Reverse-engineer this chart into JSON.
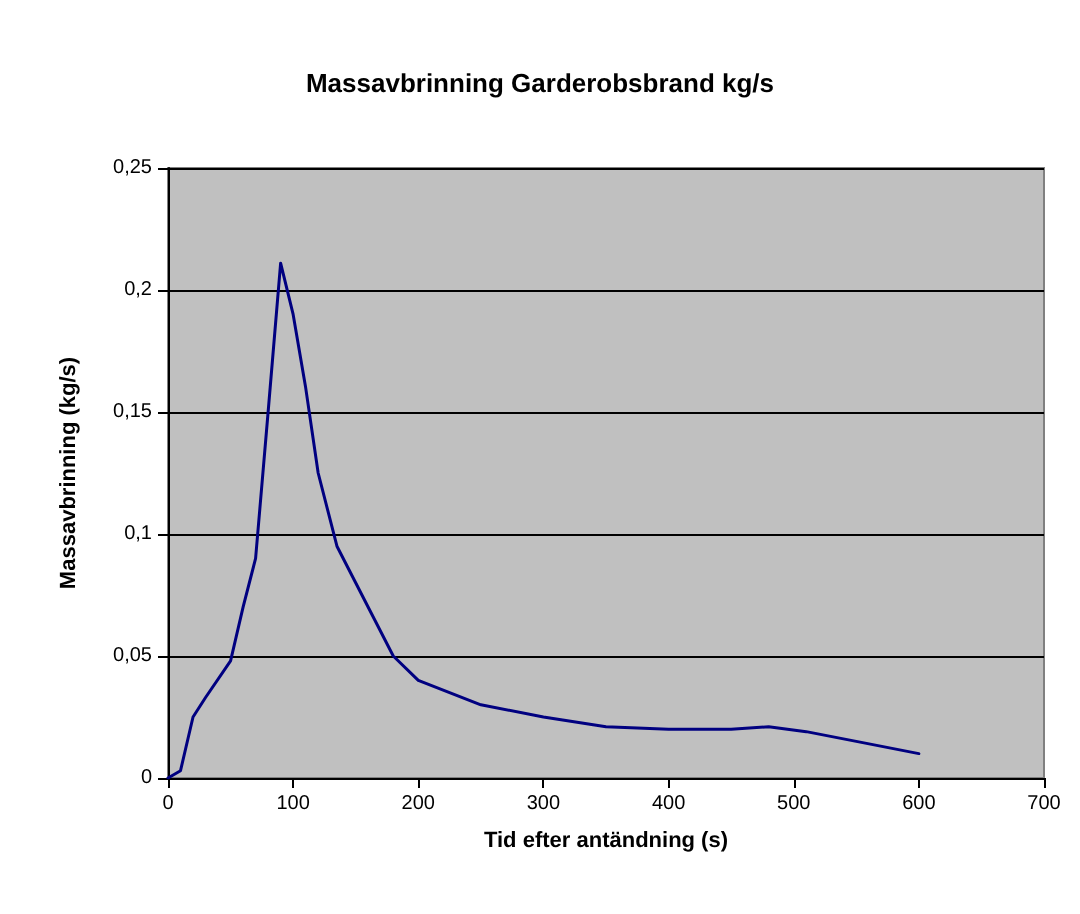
{
  "chart_data": {
    "type": "line",
    "title": "Massavbrinning Garderobsbrand kg/s",
    "xlabel": "Tid efter antändning (s)",
    "ylabel": "Massavbrinning (kg/s)",
    "series": [
      {
        "color": "#000080",
        "x": [
          0,
          10,
          20,
          30,
          50,
          60,
          70,
          80,
          90,
          100,
          110,
          120,
          135,
          160,
          180,
          200,
          250,
          300,
          350,
          400,
          450,
          480,
          510,
          550,
          600
        ],
        "values": [
          0,
          0.003,
          0.025,
          0.033,
          0.048,
          0.07,
          0.09,
          0.15,
          0.211,
          0.19,
          0.16,
          0.125,
          0.095,
          0.07,
          0.05,
          0.04,
          0.03,
          0.025,
          0.021,
          0.02,
          0.02,
          0.021,
          0.019,
          0.015,
          0.01
        ]
      }
    ],
    "xlim": [
      0,
      700
    ],
    "xticks": [
      0,
      100,
      200,
      300,
      400,
      500,
      600,
      700
    ],
    "ylim": [
      0,
      0.25
    ],
    "yticks": [
      {
        "value": 0,
        "label": "0"
      },
      {
        "value": 0.05,
        "label": "0,05"
      },
      {
        "value": 0.1,
        "label": "0,1"
      },
      {
        "value": 0.15,
        "label": "0,15"
      },
      {
        "value": 0.2,
        "label": "0,2"
      },
      {
        "value": 0.25,
        "label": "0,25"
      }
    ],
    "grid": "y",
    "marker": "none",
    "line_style": "solid"
  }
}
